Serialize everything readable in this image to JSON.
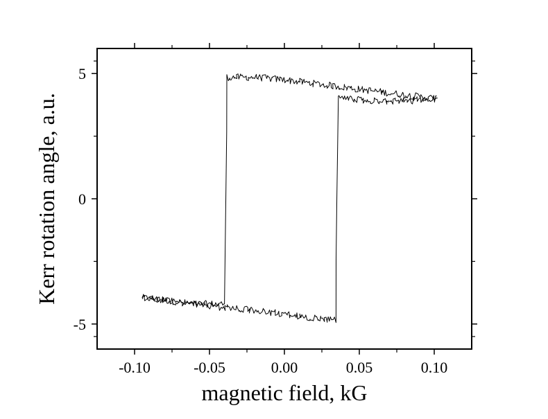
{
  "chart_data": {
    "type": "line",
    "title": "",
    "xlabel": "magnetic field, kG",
    "ylabel": "Kerr rotation angle, a.u.",
    "xlim": [
      -0.125,
      0.125
    ],
    "ylim": [
      -6.0,
      6.0
    ],
    "x_ticks": [
      {
        "value": -0.1,
        "label": "-0.10"
      },
      {
        "value": -0.05,
        "label": "-0.05"
      },
      {
        "value": 0.0,
        "label": "0.00"
      },
      {
        "value": 0.05,
        "label": "0.05"
      },
      {
        "value": 0.1,
        "label": "0.10"
      }
    ],
    "y_ticks": [
      {
        "value": 5,
        "label": "5"
      },
      {
        "value": 0,
        "label": "0"
      },
      {
        "value": -5,
        "label": "-5"
      }
    ],
    "line_color": "#000000",
    "grid": false,
    "series": [
      {
        "x": [
          -0.095,
          -0.08,
          -0.06,
          -0.04,
          -0.039,
          -0.038,
          -0.02,
          0.0,
          0.02,
          0.04,
          0.06,
          0.08,
          0.102
        ],
        "y": [
          -3.95,
          -4.05,
          -4.2,
          -4.2,
          0.5,
          4.85,
          4.85,
          4.75,
          4.6,
          4.45,
          4.3,
          4.15,
          4.0
        ]
      },
      {
        "x": [
          0.102,
          0.08,
          0.06,
          0.045,
          0.036,
          0.035,
          0.034,
          0.02,
          0.0,
          -0.02,
          -0.04,
          -0.06,
          -0.08,
          -0.095
        ],
        "y": [
          4.0,
          3.9,
          3.9,
          4.0,
          4.1,
          0.0,
          -4.85,
          -4.75,
          -4.6,
          -4.45,
          -4.35,
          -4.2,
          -4.05,
          -3.95
        ]
      }
    ]
  }
}
